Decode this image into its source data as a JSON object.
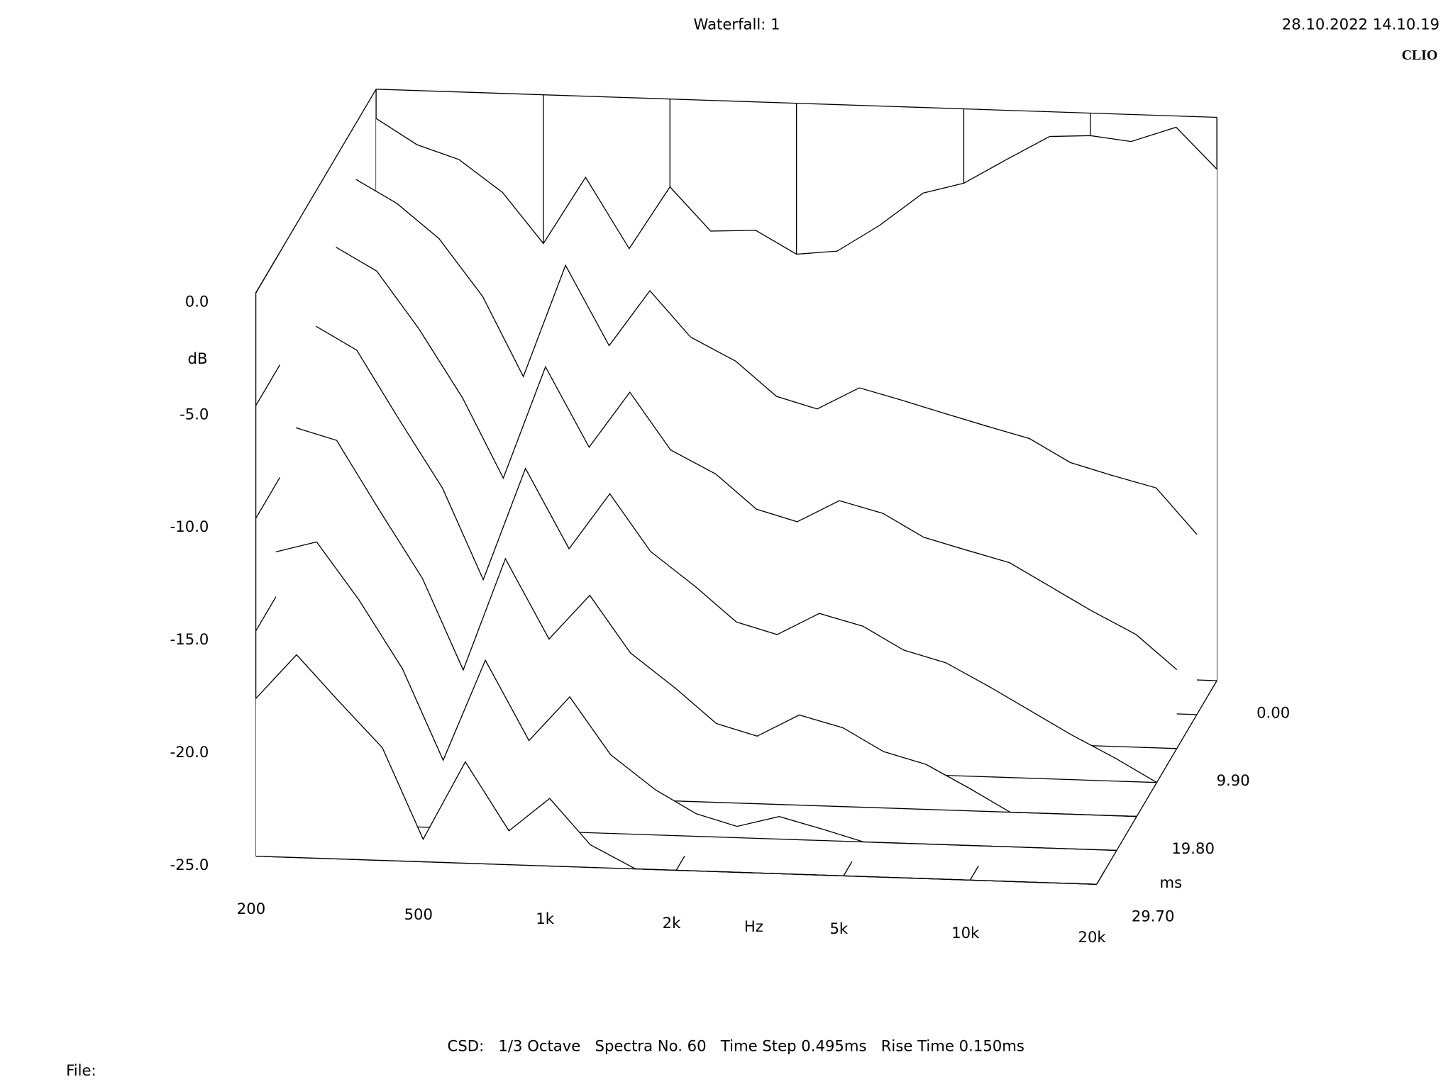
{
  "chart_data": {
    "type": "waterfall",
    "title": "Waterfall: 1",
    "timestamp": "28.10.2022 14.10.19",
    "brand": "CLIO",
    "footer": "CSD:   1/3 Octave   Spectra No. 60   Time Step 0.495ms   Rise Time 0.150ms",
    "file_label": "File:",
    "y_label": "dB",
    "x_label": "Hz",
    "z_label": "ms",
    "log_x": true,
    "xlim": [
      200,
      20000
    ],
    "xticks": [
      200,
      500,
      {
        "value": 1000,
        "label": "1k"
      },
      {
        "value": 2000,
        "label": "2k"
      },
      {
        "value": 5000,
        "label": "5k"
      },
      {
        "value": 10000,
        "label": "10k"
      },
      {
        "value": 20000,
        "label": "20k"
      }
    ],
    "ylim": [
      -25,
      0
    ],
    "yticks": [
      {
        "value": 0,
        "label": "0.0"
      },
      {
        "value": -5,
        "label": "-5.0"
      },
      {
        "value": -10,
        "label": "-10.0"
      },
      {
        "value": -15,
        "label": "-15.0"
      },
      {
        "value": -20,
        "label": "-20.0"
      },
      {
        "value": -25,
        "label": "-25.0"
      }
    ],
    "zlim": [
      0,
      29.7
    ],
    "zticks": [
      {
        "value": 0,
        "label": "0.00"
      },
      {
        "value": 9.9,
        "label": "9.90"
      },
      {
        "value": 19.8,
        "label": "19.80"
      },
      {
        "value": 29.7,
        "label": "29.70"
      }
    ],
    "color": "#000000",
    "x": [
      200,
      250,
      315,
      400,
      500,
      630,
      800,
      1000,
      1250,
      1600,
      2000,
      2500,
      3150,
      4000,
      5000,
      6300,
      8000,
      10000,
      12500,
      16000,
      20000
    ],
    "series": [
      {
        "time": 0,
        "values": [
          -1.3,
          -2.4,
          -3.0,
          -4.4,
          -6.6,
          -3.6,
          -6.7,
          -3.9,
          -5.8,
          -5.7,
          -6.7,
          -6.5,
          -5.3,
          -3.8,
          -3.3,
          -2.2,
          -1.1,
          -1.0,
          -1.2,
          -0.5,
          -2.3
        ]
      },
      {
        "time": 4.95,
        "values": [
          -2.5,
          -3.5,
          -5.0,
          -7.5,
          -11.0,
          -6.0,
          -9.5,
          -7.0,
          -9.0,
          -10.0,
          -11.5,
          -12.0,
          -11.0,
          -11.5,
          -12.0,
          -12.5,
          -13.0,
          -14.0,
          -14.5,
          -15.0,
          -17.0
        ]
      },
      {
        "time": 9.9,
        "values": [
          -4.0,
          -5.0,
          -7.5,
          -10.5,
          -14.0,
          -9.0,
          -12.5,
          -10.0,
          -12.5,
          -13.5,
          -15.0,
          -15.5,
          -14.5,
          -15.0,
          -16.0,
          -16.5,
          -17.0,
          -18.0,
          -19.0,
          -20.0,
          -21.5
        ]
      },
      {
        "time": 14.85,
        "values": [
          -6.0,
          -7.0,
          -10.0,
          -13.0,
          -17.0,
          -12.0,
          -15.5,
          -13.0,
          -15.5,
          -17.0,
          -18.5,
          -19.0,
          -18.0,
          -18.5,
          -19.5,
          -20.0,
          -21.0,
          -22.0,
          -23.0,
          -24.0,
          -25.0
        ]
      },
      {
        "time": 19.8,
        "values": [
          -9.0,
          -9.5,
          -12.5,
          -15.5,
          -19.5,
          -14.5,
          -18.0,
          -16.0,
          -18.5,
          -20.0,
          -21.5,
          -22.0,
          -21.0,
          -21.5,
          -22.5,
          -23.0,
          -24.0,
          -25.0,
          -25.0,
          -25.0,
          -25.0
        ]
      },
      {
        "time": 24.75,
        "values": [
          -13.0,
          -12.5,
          -15.0,
          -18.0,
          -22.0,
          -17.5,
          -21.0,
          -19.0,
          -21.5,
          -23.0,
          -24.0,
          -24.5,
          -24.0,
          -24.5,
          -25.0,
          -25.0,
          -25.0,
          -25.0,
          -25.0,
          -25.0,
          -25.0
        ]
      },
      {
        "time": 29.7,
        "values": [
          -18.0,
          -16.0,
          -18.0,
          -20.0,
          -24.0,
          -20.5,
          -23.5,
          -22.0,
          -24.0,
          -25.0,
          -25.0,
          -25.0,
          -25.0,
          -25.0,
          -25.0,
          -25.0,
          -25.0,
          -25.0,
          -25.0,
          -25.0,
          -25.0
        ]
      }
    ]
  }
}
